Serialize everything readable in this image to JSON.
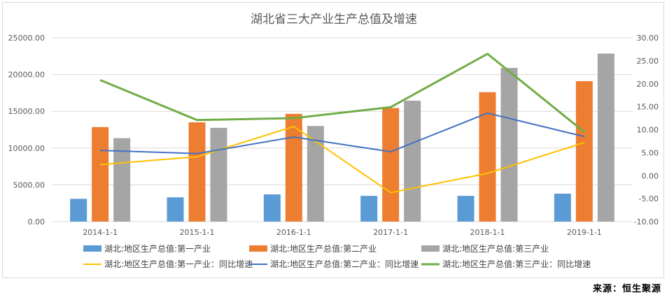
{
  "chart_data": {
    "type": "bar",
    "title": "湖北省三大产业生产总值及增速",
    "categories": [
      "2014-1-1",
      "2015-1-1",
      "2016-1-1",
      "2017-1-1",
      "2018-1-1",
      "2019-1-1"
    ],
    "y_left": {
      "ylim": [
        0,
        25000
      ],
      "ticks": [
        "0.00",
        "5000.00",
        "10000.00",
        "15000.00",
        "20000.00",
        "25000.00"
      ]
    },
    "y_right": {
      "ylim": [
        -10,
        30
      ],
      "ticks": [
        "-10.00",
        "-5.00",
        "0.00",
        "5.00",
        "10.00",
        "15.00",
        "20.00",
        "25.00",
        "30.00"
      ]
    },
    "grid": true,
    "legend_position": "bottom",
    "series": [
      {
        "name": "湖北:地区生产总值:第一产业",
        "kind": "bar",
        "axis": "left",
        "color": "#5b9bd5",
        "values": [
          3100,
          3300,
          3700,
          3500,
          3500,
          3800
        ]
      },
      {
        "name": "湖北:地区生产总值:第二产业",
        "kind": "bar",
        "axis": "left",
        "color": "#ed7d31",
        "values": [
          12850,
          13500,
          14650,
          15450,
          17600,
          19100
        ]
      },
      {
        "name": "湖北:地区生产总值:第三产业",
        "kind": "bar",
        "axis": "left",
        "color": "#a5a5a5",
        "values": [
          11350,
          12750,
          13000,
          16450,
          20900,
          22850
        ]
      },
      {
        "name": "湖北:地区生产总值:第一产业：同比增速",
        "kind": "line",
        "axis": "right",
        "color": "#ffc000",
        "values": [
          2.4,
          4.1,
          10.7,
          -3.7,
          0.5,
          7.2
        ]
      },
      {
        "name": "湖北:地区生产总值:第二产业：同比增速",
        "kind": "line",
        "axis": "right",
        "color": "#4472c4",
        "values": [
          5.5,
          4.8,
          8.4,
          5.2,
          13.6,
          8.5
        ]
      },
      {
        "name": "湖北:地区生产总值:第三产业：同比增速",
        "kind": "line",
        "axis": "right",
        "color": "#70ad47",
        "values": [
          20.8,
          12.1,
          12.5,
          14.9,
          26.5,
          9.5
        ]
      }
    ]
  },
  "source_note": "来源：恒生聚源"
}
